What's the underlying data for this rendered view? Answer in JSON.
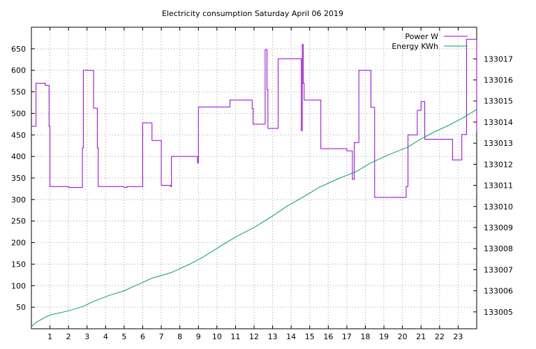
{
  "chart_data": {
    "type": "line",
    "title": "Electricity consumption Saturday April 06 2019",
    "xlabel": "",
    "ylabel": "",
    "y2label": "",
    "xlim": [
      0,
      24
    ],
    "ylim": [
      0,
      700
    ],
    "y2lim": [
      133004.2,
      133018.5
    ],
    "xticks": [
      1,
      2,
      3,
      4,
      5,
      6,
      7,
      8,
      9,
      10,
      11,
      12,
      13,
      14,
      15,
      16,
      17,
      18,
      19,
      20,
      21,
      22,
      23
    ],
    "yticks": [
      50,
      100,
      150,
      200,
      250,
      300,
      350,
      400,
      450,
      500,
      550,
      600,
      650
    ],
    "y2ticks": [
      133005,
      133006,
      133007,
      133008,
      133009,
      133010,
      133011,
      133012,
      133013,
      133014,
      133015,
      133016,
      133017
    ],
    "grid": true,
    "legend_position": "top-right",
    "series": [
      {
        "name": "Power W",
        "axis": "left",
        "color": "#9400d3",
        "step": true,
        "x": [
          0,
          0.25,
          0.75,
          0.95,
          1.0,
          2.0,
          2.7,
          2.75,
          2.8,
          3.35,
          3.55,
          3.6,
          5.0,
          5.15,
          6.0,
          6.5,
          7.0,
          7.5,
          7.55,
          8.75,
          8.95,
          9.0,
          9.7,
          10.7,
          11.9,
          11.95,
          12.6,
          12.7,
          12.75,
          13.3,
          14.55,
          14.6,
          14.65,
          14.7,
          15.4,
          15.6,
          17.0,
          17.3,
          17.4,
          17.65,
          18.3,
          18.5,
          19.8,
          20.2,
          20.3,
          20.8,
          21.0,
          21.2,
          22.1,
          22.7,
          23.2,
          23.45,
          24.0
        ],
        "values": [
          470,
          570,
          565,
          470,
          330,
          328,
          328,
          420,
          600,
          512,
          420,
          330,
          328,
          330,
          478,
          437,
          333,
          330,
          400,
          400,
          385,
          515,
          515,
          531,
          511,
          475,
          648,
          555,
          465,
          627,
          460,
          660,
          570,
          531,
          531,
          418,
          413,
          347,
          432,
          600,
          514,
          305,
          305,
          330,
          450,
          507,
          527,
          440,
          440,
          392,
          451,
          672,
          457
        ]
      },
      {
        "name": "Energy KWh",
        "axis": "right",
        "color": "#009e73",
        "x": [
          0,
          0.25,
          0.75,
          1.0,
          2.0,
          2.75,
          3.5,
          4.25,
          5.0,
          5.75,
          6.5,
          7.5,
          8.5,
          9.25,
          10.25,
          11.0,
          12.0,
          13.0,
          13.75,
          14.75,
          15.5,
          16.5,
          17.5,
          18.25,
          19.25,
          20.25,
          21.0,
          21.75,
          22.5,
          23.25,
          24.0
        ],
        "values": [
          133004.3,
          133004.5,
          133004.75,
          133004.85,
          133005.05,
          133005.25,
          133005.55,
          133005.8,
          133006.0,
          133006.3,
          133006.6,
          133006.85,
          133007.25,
          133007.6,
          133008.15,
          133008.55,
          133009.0,
          133009.55,
          133010.0,
          133010.5,
          133010.9,
          133011.3,
          133011.65,
          133012.05,
          133012.45,
          133012.8,
          133013.2,
          133013.55,
          133013.85,
          133014.2,
          133014.6
        ]
      }
    ]
  }
}
